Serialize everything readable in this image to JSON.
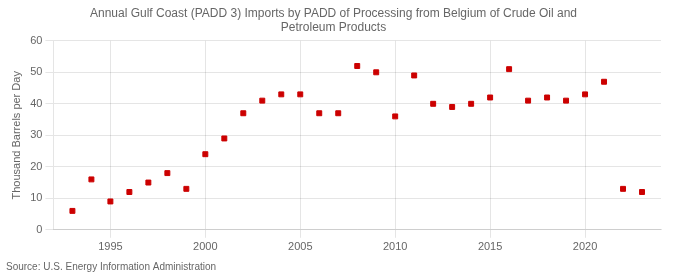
{
  "chart_data": {
    "type": "scatter",
    "title": "Annual Gulf Coast (PADD 3) Imports by PADD of Processing from Belgium of Crude Oil and\nPetroleum Products",
    "ylabel": "Thousand Barrels per Day",
    "annotation": "Source: U.S. Energy Information Administration",
    "x": [
      1993,
      1994,
      1995,
      1996,
      1997,
      1998,
      1999,
      2000,
      2001,
      2002,
      2003,
      2004,
      2005,
      2006,
      2007,
      2008,
      2009,
      2010,
      2011,
      2012,
      2013,
      2014,
      2015,
      2016,
      2017,
      2018,
      2019,
      2020,
      2021,
      2022,
      2023
    ],
    "values": [
      6,
      16,
      9,
      12,
      15,
      18,
      13,
      24,
      29,
      37,
      41,
      43,
      43,
      37,
      37,
      52,
      50,
      36,
      49,
      40,
      39,
      40,
      42,
      51,
      41,
      42,
      41,
      43,
      47,
      13,
      12
    ],
    "color": "#cc0000",
    "marker": "square",
    "xlim": [
      1992,
      2024
    ],
    "xticks": [
      1995,
      2000,
      2005,
      2010,
      2015,
      2020
    ],
    "ylim": [
      0,
      60
    ],
    "yticks": [
      0,
      10,
      20,
      30,
      40,
      50,
      60
    ],
    "grid": true
  }
}
